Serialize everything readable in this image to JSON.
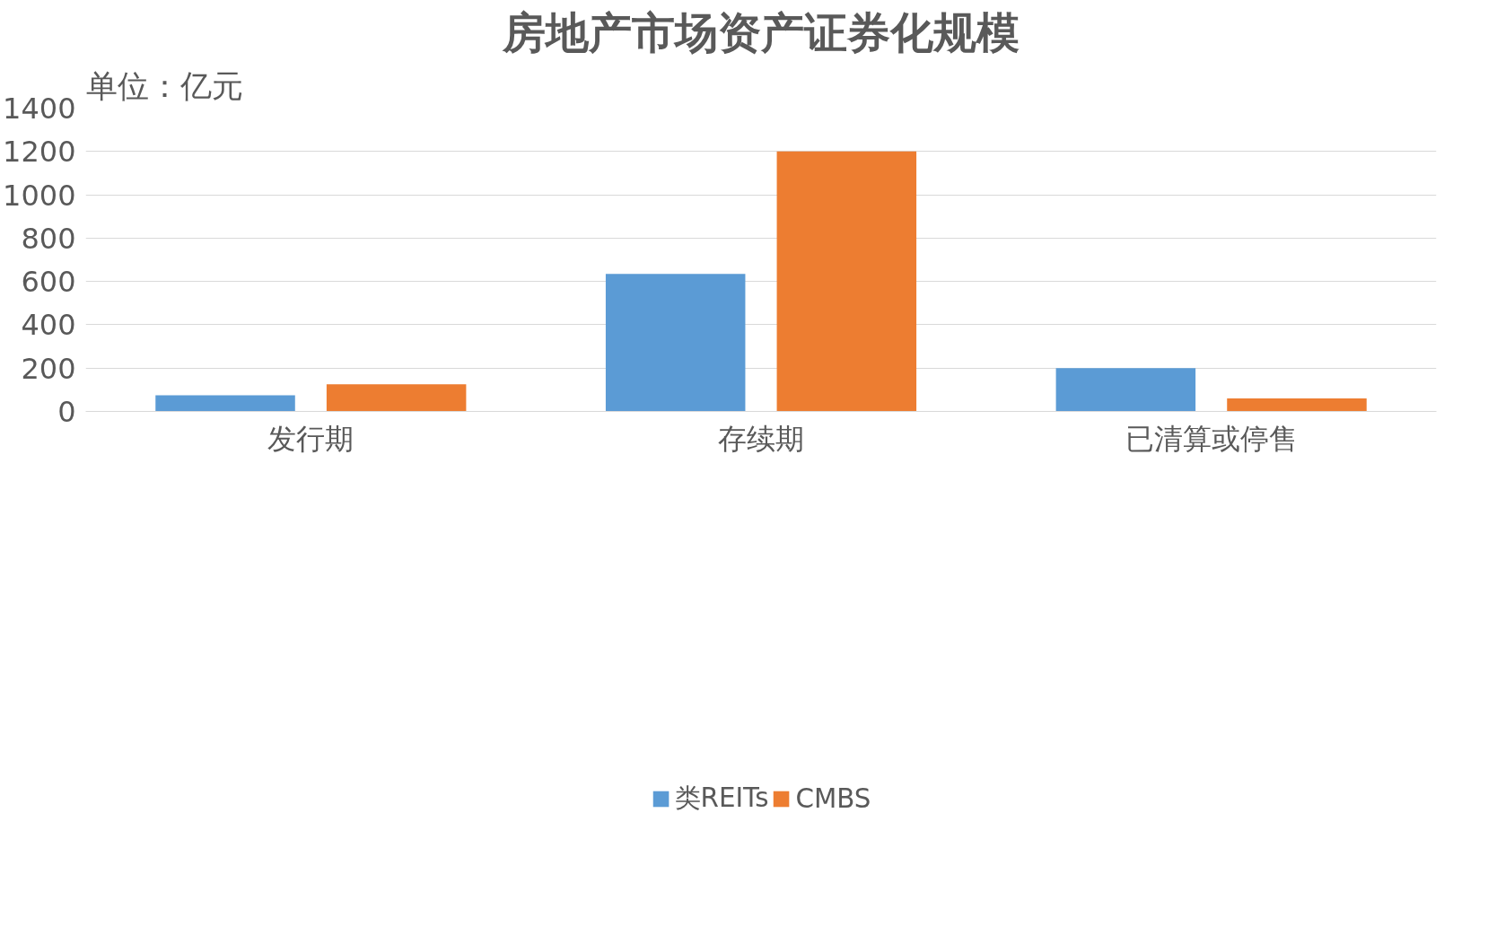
{
  "chart_data": {
    "type": "bar",
    "title": "房地产市场资产证券化规模",
    "ylabel": "单位：亿元",
    "categories": [
      "发行期",
      "存续期",
      "已清算或停售"
    ],
    "series": [
      {
        "name": "类REITs",
        "color": "#5b9bd5",
        "values": [
          75,
          635,
          200
        ]
      },
      {
        "name": "CMBS",
        "color": "#ed7d31",
        "values": [
          125,
          1200,
          60
        ]
      }
    ],
    "ylim": [
      0,
      1400
    ],
    "yticks": [
      0,
      200,
      400,
      600,
      800,
      1000,
      1200,
      1400
    ],
    "grid": "y",
    "legend": "bottom"
  }
}
